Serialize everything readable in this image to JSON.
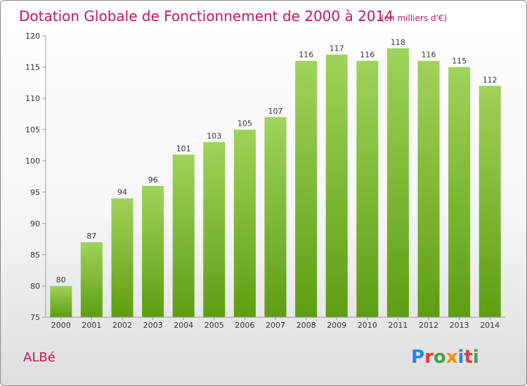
{
  "header": {
    "title": "Dotation Globale de Fonctionnement de 2000 à 2014",
    "subtitle": "(en milliers d'€)"
  },
  "commune": "ALBé",
  "logo": {
    "text": "Proxiti",
    "letter_colors": [
      "#1e88e5",
      "#e53935",
      "#43a047",
      "#fb8c00",
      "#1e88e5",
      "#e53935",
      "#43a047"
    ]
  },
  "colors": {
    "bar_top": "#9fd35a",
    "bar_bottom": "#5e9e12",
    "accent": "#c2185b"
  },
  "chart_data": {
    "type": "bar",
    "title": "Dotation Globale de Fonctionnement de 2000 à 2014",
    "subtitle": "(en milliers d'€)",
    "xlabel": "",
    "ylabel": "",
    "categories": [
      "2000",
      "2001",
      "2002",
      "2003",
      "2004",
      "2005",
      "2006",
      "2007",
      "2008",
      "2009",
      "2010",
      "2011",
      "2012",
      "2013",
      "2014"
    ],
    "values": [
      80,
      87,
      94,
      96,
      101,
      103,
      105,
      107,
      116,
      117,
      116,
      118,
      116,
      115,
      112
    ],
    "ylim": [
      75,
      120
    ],
    "yticks": [
      75,
      80,
      85,
      90,
      95,
      100,
      105,
      110,
      115,
      120
    ],
    "grid": false,
    "legend": "none"
  }
}
